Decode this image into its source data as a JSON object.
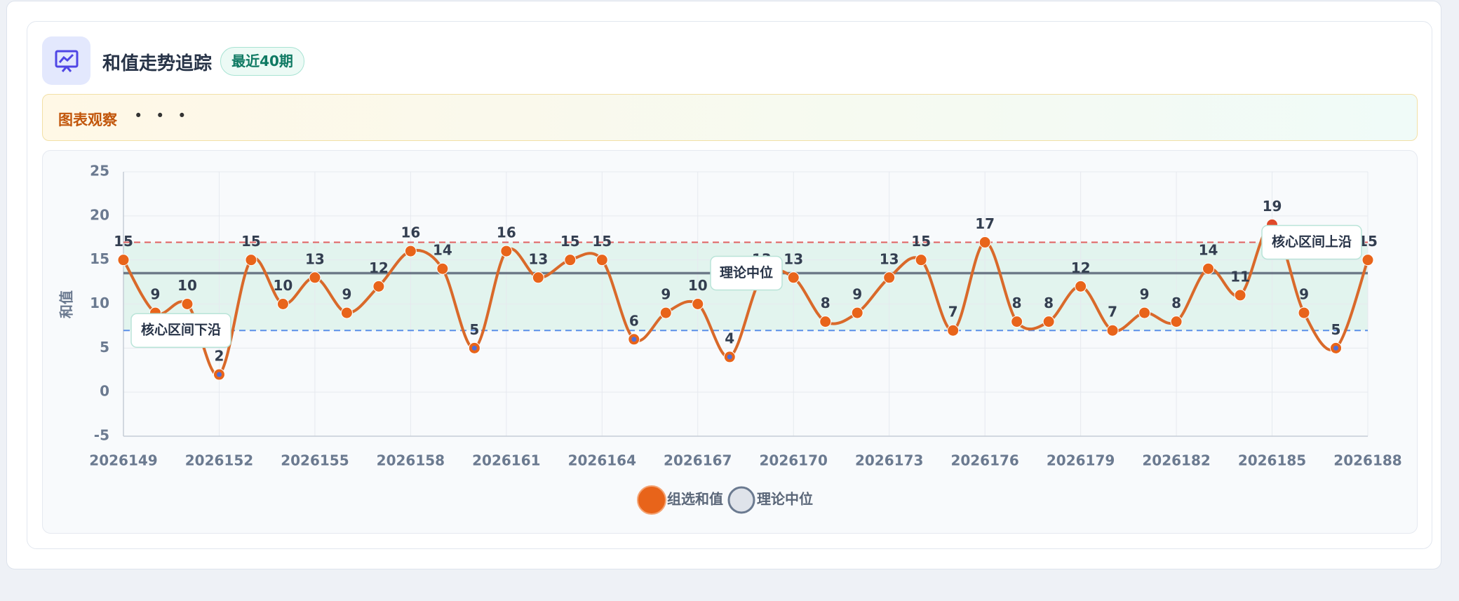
{
  "header": {
    "title": "和值走势追踪",
    "badge": "最近40期"
  },
  "banner": {
    "title": "图表观察",
    "text": "• • •"
  },
  "chart_data": {
    "type": "line",
    "y_label": "和值",
    "categories": [
      "2026149",
      null,
      null,
      "2026152",
      null,
      null,
      "2026155",
      null,
      null,
      "2026158",
      null,
      null,
      "2026161",
      null,
      null,
      "2026164",
      null,
      null,
      "2026167",
      null,
      null,
      "2026170",
      null,
      null,
      "2026173",
      null,
      null,
      "2026176",
      null,
      null,
      "2026179",
      null,
      null,
      "2026182",
      null,
      null,
      "2026185",
      null,
      null,
      "2026188"
    ],
    "series": [
      {
        "name": "组选和值",
        "color": "#e8641a",
        "values": [
          15,
          9,
          10,
          2,
          15,
          10,
          13,
          9,
          12,
          16,
          14,
          5,
          16,
          13,
          15,
          15,
          6,
          9,
          10,
          4,
          13,
          13,
          8,
          9,
          13,
          15,
          7,
          17,
          8,
          8,
          12,
          7,
          9,
          8,
          14,
          11,
          19,
          9,
          5,
          15
        ]
      }
    ],
    "median_line": {
      "name": "理论中位",
      "value": 13.5,
      "color": "#5a6678",
      "annotation": "理论中位"
    },
    "reference_lines": [
      {
        "value": 17,
        "color": "#e06060",
        "annotation": "核心区间上沿"
      },
      {
        "value": 7,
        "color": "#5b8fe8",
        "annotation": "核心区间下沿"
      }
    ],
    "band_color": "#dcf2ea",
    "ylim": [
      -5,
      25
    ],
    "yticks": [
      -5,
      0,
      5,
      10,
      15,
      20,
      25
    ],
    "grid": true
  }
}
